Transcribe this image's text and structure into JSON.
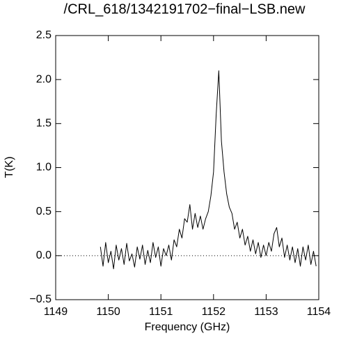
{
  "chart_data": {
    "type": "line",
    "title": "/CRL_618/1342191702−final−LSB.new",
    "x_label": "Frequency (GHz)",
    "y_label": "T(K)",
    "x": [
      1149.85,
      1149.9,
      1149.95,
      1150,
      1150.05,
      1150.1,
      1150.15,
      1150.2,
      1150.25,
      1150.3,
      1150.35,
      1150.4,
      1150.45,
      1150.5,
      1150.55,
      1150.6,
      1150.65,
      1150.7,
      1150.75,
      1150.8,
      1150.85,
      1150.9,
      1150.95,
      1151,
      1151.05,
      1151.1,
      1151.15,
      1151.2,
      1151.25,
      1151.3,
      1151.35,
      1151.4,
      1151.45,
      1151.5,
      1151.55,
      1151.6,
      1151.65,
      1151.7,
      1151.75,
      1151.8,
      1151.85,
      1151.9,
      1151.95,
      1152,
      1152.05,
      1152.1,
      1152.15,
      1152.2,
      1152.25,
      1152.3,
      1152.35,
      1152.4,
      1152.45,
      1152.5,
      1152.55,
      1152.6,
      1152.65,
      1152.7,
      1152.75,
      1152.8,
      1152.85,
      1152.9,
      1152.95,
      1153,
      1153.05,
      1153.1,
      1153.15,
      1153.2,
      1153.25,
      1153.3,
      1153.35,
      1153.4,
      1153.45,
      1153.5,
      1153.55,
      1153.6,
      1153.65,
      1153.7,
      1153.75,
      1153.8,
      1153.85,
      1153.9,
      1153.95
    ],
    "values": [
      0.1,
      -0.12,
      0.15,
      -0.08,
      0.05,
      -0.15,
      0.12,
      -0.05,
      0.08,
      -0.1,
      0.14,
      -0.06,
      0.02,
      -0.13,
      0.1,
      -0.04,
      0.12,
      -0.1,
      0.06,
      -0.08,
      0.15,
      -0.02,
      0.1,
      -0.12,
      0.08,
      0.0,
      0.12,
      -0.05,
      0.18,
      0.1,
      0.3,
      0.2,
      0.42,
      0.38,
      0.58,
      0.3,
      0.48,
      0.32,
      0.45,
      0.3,
      0.42,
      0.5,
      0.68,
      0.95,
      1.6,
      2.1,
      1.3,
      0.95,
      0.7,
      0.55,
      0.48,
      0.3,
      0.38,
      0.2,
      0.3,
      0.12,
      0.22,
      0.05,
      0.18,
      0.02,
      0.15,
      -0.02,
      0.12,
      0.0,
      0.15,
      0.05,
      0.25,
      0.32,
      0.1,
      0.2,
      -0.02,
      0.12,
      -0.05,
      0.1,
      -0.08,
      0.08,
      -0.12,
      0.1,
      -0.05,
      0.12,
      -0.1,
      0.05,
      -0.12
    ],
    "color": "#000000",
    "reference_line": 0,
    "xlim": [
      1149,
      1154
    ],
    "xticks": [
      1149,
      1150,
      1151,
      1152,
      1153,
      1154
    ],
    "ylim": [
      -0.5,
      2.5
    ],
    "yticks": [
      {
        "value": -0.5,
        "label": "−0.5"
      },
      {
        "value": 0,
        "label": "0.0"
      },
      {
        "value": 0.5,
        "label": "0.5"
      },
      {
        "value": 1,
        "label": "1.0"
      },
      {
        "value": 1.5,
        "label": "1.5"
      },
      {
        "value": 2,
        "label": "2.0"
      },
      {
        "value": 2.5,
        "label": "2.5"
      }
    ]
  }
}
